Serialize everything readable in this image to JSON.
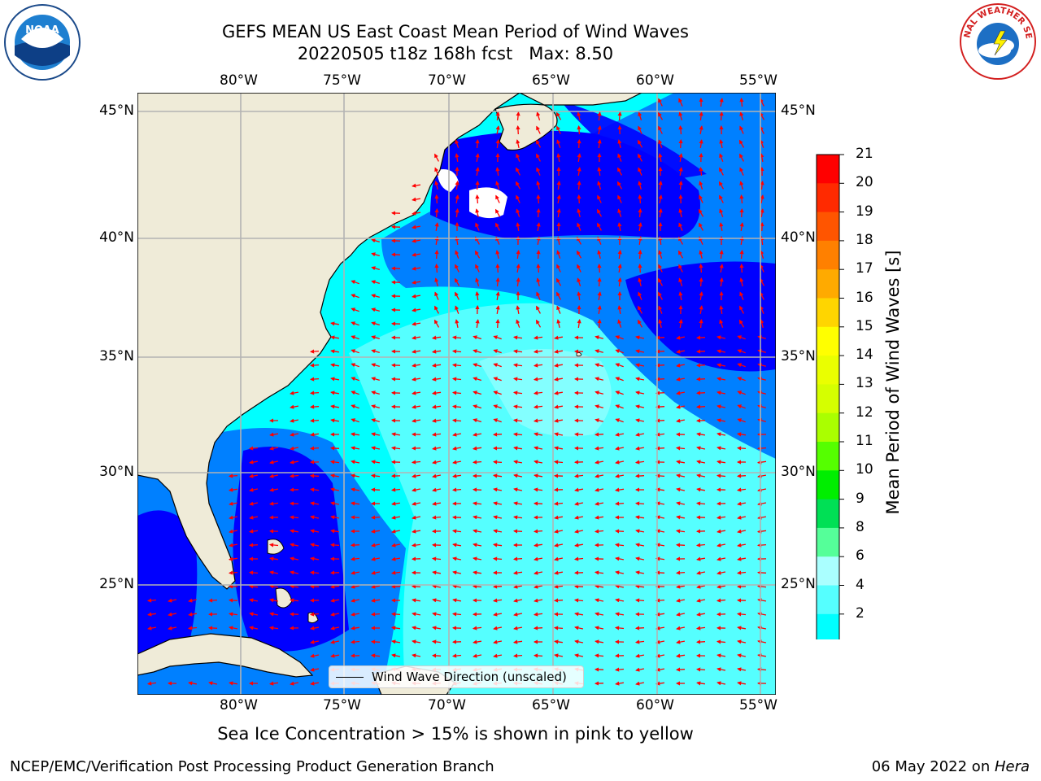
{
  "title": {
    "line1": "GEFS MEAN US East Coast Mean Period of Wind Waves",
    "line2": "20220505 t18z 168h fcst   Max: 8.50"
  },
  "logos": {
    "left": {
      "text": "NOAA"
    },
    "right": {
      "text": "NATIONAL WEATHER SERVICE"
    }
  },
  "map": {
    "lon_labels": [
      "80°W",
      "75°W",
      "70°W",
      "65°W",
      "60°W",
      "55°W"
    ],
    "lat_labels": [
      "45°N",
      "40°N",
      "35°N",
      "30°N",
      "25°N"
    ],
    "legend_label": "Wind Wave Direction (unscaled)",
    "arrow_color": "#ff0000",
    "land_color": "#efebd8"
  },
  "colorbar": {
    "title": "Mean Period of Wind Waves [s]",
    "ticks": [
      "21",
      "20",
      "19",
      "18",
      "17",
      "16",
      "15",
      "14",
      "13",
      "12",
      "11",
      "10",
      "9",
      "8",
      "6",
      "4",
      "2"
    ],
    "colors": [
      "#ff0000",
      "#ff2a00",
      "#ff5500",
      "#ff8000",
      "#ffaa00",
      "#ffd500",
      "#ffff00",
      "#eaff00",
      "#d5ff00",
      "#aaff00",
      "#55ff00",
      "#00ee00",
      "#00e055",
      "#55ff99",
      "#aaffff",
      "#55ffff",
      "#00ffff",
      "#0080ff",
      "#0000ff"
    ]
  },
  "bottom_note": "Sea Ice Concentration > 15% is shown in pink to yellow",
  "footer": {
    "left": "NCEP/EMC/Verification Post Processing Product Generation Branch",
    "date": "06 May 2022 on ",
    "host": "Hera"
  }
}
